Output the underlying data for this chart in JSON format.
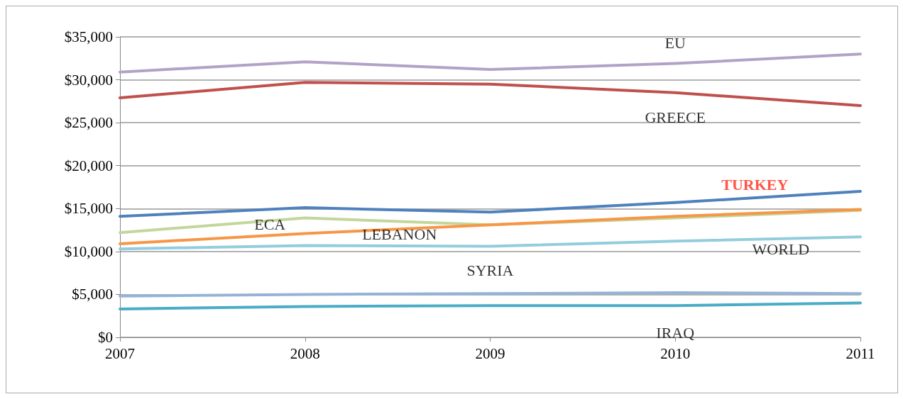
{
  "chart_data": {
    "type": "line",
    "x": [
      2007,
      2008,
      2009,
      2010,
      2011
    ],
    "xlim": [
      2007,
      2011
    ],
    "xticks": [
      2007,
      2008,
      2009,
      2010,
      2011
    ],
    "ylim": [
      0,
      35000
    ],
    "yticks": [
      {
        "value": 0,
        "label": "$0"
      },
      {
        "value": 5000,
        "label": "$5,000"
      },
      {
        "value": 10000,
        "label": "$10,000"
      },
      {
        "value": 15000,
        "label": "$15,000"
      },
      {
        "value": 20000,
        "label": "$20,000"
      },
      {
        "value": 25000,
        "label": "$25,000"
      },
      {
        "value": 30000,
        "label": "$30,000"
      },
      {
        "value": 35000,
        "label": "$35,000"
      }
    ],
    "grid": "y",
    "marker": "none",
    "line_style": "solid",
    "series": [
      {
        "name": "EU",
        "color": "#b3a2c7",
        "values": [
          30900,
          32100,
          31200,
          31900,
          33000
        ]
      },
      {
        "name": "GREECE",
        "color": "#c0504d",
        "values": [
          27900,
          29700,
          29500,
          28500,
          27000
        ]
      },
      {
        "name": "TURKEY",
        "color": "#4f81bd",
        "values": [
          14100,
          15100,
          14600,
          15700,
          17000
        ]
      },
      {
        "name": "ECA",
        "color": "#c3d69b",
        "values": [
          12200,
          13900,
          13100,
          13900,
          14800
        ]
      },
      {
        "name": "LEBANON",
        "color": "#f79646",
        "values": [
          10900,
          12100,
          13100,
          14100,
          14900
        ]
      },
      {
        "name": "WORLD",
        "color": "#93cddd",
        "values": [
          10300,
          10700,
          10600,
          11200,
          11700
        ]
      },
      {
        "name": "SYRIA",
        "color": "#95b3d7",
        "values": [
          4800,
          5000,
          5100,
          5200,
          5100
        ]
      },
      {
        "name": "IRAQ",
        "color": "#4bacc6",
        "values": [
          3300,
          3600,
          3700,
          3700,
          4000
        ]
      }
    ]
  }
}
